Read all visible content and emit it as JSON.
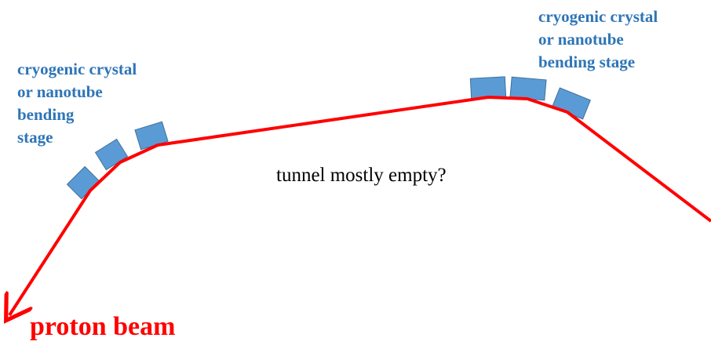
{
  "colors": {
    "beam": "#ff0000",
    "stage_fill": "#5b9bd5",
    "stage_stroke": "#41719c",
    "stage_label": "#2e75b6",
    "text": "#000000"
  },
  "stage_left": {
    "lines": [
      "cryogenic crystal",
      "or nanotube",
      "bending",
      "stage"
    ]
  },
  "stage_right": {
    "lines": [
      "cryogenic crystal",
      "or nanotube",
      "bending stage"
    ]
  },
  "tunnel_note": "tunnel mostly empty?",
  "beam_label": "proton beam"
}
